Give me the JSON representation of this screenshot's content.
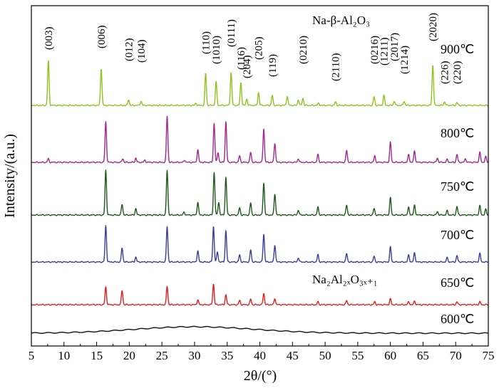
{
  "chart_data": {
    "type": "line",
    "title": "",
    "xlabel": "2θ/(°)",
    "ylabel": "Intensity/(a.u.)",
    "xlim": [
      5,
      75
    ],
    "xticks": [
      5,
      10,
      15,
      20,
      25,
      30,
      35,
      40,
      45,
      50,
      55,
      60,
      65,
      70,
      75
    ],
    "grid": false,
    "phase_labels": {
      "beta": "Na-β-Al₂O₃",
      "nax": "Na₂Al₂ₓO₃ₓ₊₁"
    },
    "hkl_annotations": [
      {
        "x": 7.6,
        "label": "(003)"
      },
      {
        "x": 15.7,
        "label": "(006)"
      },
      {
        "x": 19.9,
        "label": "(012)"
      },
      {
        "x": 21.8,
        "label": "(104)"
      },
      {
        "x": 31.7,
        "label": "(110)"
      },
      {
        "x": 33.3,
        "label": "(1010)"
      },
      {
        "x": 35.6,
        "label": "(0111)"
      },
      {
        "x": 37.1,
        "label": "(116)"
      },
      {
        "x": 38.0,
        "label": "(204)"
      },
      {
        "x": 39.8,
        "label": "(205)"
      },
      {
        "x": 41.9,
        "label": "(119)"
      },
      {
        "x": 46.6,
        "label": "(0210)"
      },
      {
        "x": 51.6,
        "label": "(2110)"
      },
      {
        "x": 57.5,
        "label": "(0216)"
      },
      {
        "x": 59.0,
        "label": "(1211)"
      },
      {
        "x": 60.6,
        "label": "(2017)"
      },
      {
        "x": 62.1,
        "label": "(1214)"
      },
      {
        "x": 66.5,
        "label": "(2020)"
      },
      {
        "x": 68.3,
        "label": "(226)"
      },
      {
        "x": 70.2,
        "label": "(220)"
      }
    ],
    "series": [
      {
        "name": "900℃",
        "color": "#8fc31f",
        "peaks": [
          [
            7.6,
            62
          ],
          [
            15.7,
            52
          ],
          [
            19.9,
            8
          ],
          [
            21.8,
            6
          ],
          [
            30.2,
            3
          ],
          [
            31.7,
            45
          ],
          [
            33.3,
            33
          ],
          [
            35.6,
            46
          ],
          [
            37.1,
            32
          ],
          [
            38.0,
            9
          ],
          [
            39.8,
            18
          ],
          [
            41.9,
            14
          ],
          [
            44.2,
            13
          ],
          [
            45.9,
            8
          ],
          [
            46.6,
            10
          ],
          [
            49.0,
            3
          ],
          [
            51.6,
            5
          ],
          [
            57.5,
            12
          ],
          [
            59.0,
            14
          ],
          [
            60.6,
            6
          ],
          [
            62.1,
            6
          ],
          [
            66.5,
            57
          ],
          [
            68.3,
            5
          ],
          [
            70.2,
            4
          ]
        ]
      },
      {
        "name": "800℃",
        "color": "#a0298f",
        "peaks": [
          [
            7.6,
            5
          ],
          [
            16.4,
            57
          ],
          [
            19.0,
            5
          ],
          [
            21.0,
            6
          ],
          [
            22.4,
            3
          ],
          [
            25.8,
            65
          ],
          [
            28.5,
            3
          ],
          [
            30.5,
            18
          ],
          [
            33.0,
            55
          ],
          [
            33.6,
            14
          ],
          [
            34.8,
            57
          ],
          [
            36.9,
            9
          ],
          [
            38.6,
            14
          ],
          [
            40.6,
            47
          ],
          [
            42.3,
            27
          ],
          [
            45.9,
            5
          ],
          [
            48.9,
            11
          ],
          [
            53.3,
            17
          ],
          [
            57.6,
            9
          ],
          [
            60.0,
            28
          ],
          [
            62.8,
            11
          ],
          [
            63.7,
            16
          ],
          [
            67.2,
            6
          ],
          [
            68.7,
            4
          ],
          [
            70.2,
            11
          ],
          [
            71.5,
            5
          ],
          [
            73.7,
            14
          ],
          [
            74.6,
            8
          ]
        ]
      },
      {
        "name": "750℃",
        "color": "#1f5a1a",
        "peaks": [
          [
            16.4,
            63
          ],
          [
            18.9,
            15
          ],
          [
            21.0,
            9
          ],
          [
            25.8,
            63
          ],
          [
            28.4,
            4
          ],
          [
            30.5,
            18
          ],
          [
            33.0,
            60
          ],
          [
            33.7,
            18
          ],
          [
            34.8,
            53
          ],
          [
            36.9,
            10
          ],
          [
            38.6,
            17
          ],
          [
            40.6,
            45
          ],
          [
            42.3,
            30
          ],
          [
            45.9,
            7
          ],
          [
            48.9,
            11
          ],
          [
            53.3,
            14
          ],
          [
            57.5,
            9
          ],
          [
            60.0,
            24
          ],
          [
            62.8,
            11
          ],
          [
            63.7,
            14
          ],
          [
            67.2,
            5
          ],
          [
            68.7,
            6
          ],
          [
            70.2,
            12
          ],
          [
            73.7,
            13
          ],
          [
            74.6,
            8
          ]
        ]
      },
      {
        "name": "700℃",
        "color": "#3b3d9a",
        "peaks": [
          [
            16.4,
            51
          ],
          [
            18.9,
            20
          ],
          [
            21.0,
            7
          ],
          [
            25.8,
            50
          ],
          [
            30.5,
            16
          ],
          [
            32.9,
            50
          ],
          [
            33.5,
            14
          ],
          [
            34.8,
            44
          ],
          [
            36.9,
            10
          ],
          [
            38.6,
            17
          ],
          [
            40.6,
            39
          ],
          [
            42.3,
            24
          ],
          [
            45.9,
            6
          ],
          [
            48.9,
            10
          ],
          [
            53.3,
            12
          ],
          [
            57.5,
            8
          ],
          [
            60.0,
            21
          ],
          [
            62.8,
            10
          ],
          [
            63.7,
            13
          ],
          [
            68.7,
            6
          ],
          [
            70.2,
            9
          ],
          [
            73.7,
            12
          ]
        ]
      },
      {
        "name": "650℃",
        "color": "#e0201d",
        "peaks": [
          [
            16.4,
            25
          ],
          [
            18.9,
            20
          ],
          [
            25.8,
            26
          ],
          [
            30.5,
            7
          ],
          [
            32.9,
            29
          ],
          [
            34.8,
            14
          ],
          [
            36.9,
            6
          ],
          [
            38.6,
            8
          ],
          [
            40.6,
            16
          ],
          [
            42.3,
            9
          ],
          [
            48.9,
            4
          ],
          [
            53.3,
            6
          ],
          [
            57.6,
            4
          ],
          [
            60.0,
            8
          ],
          [
            62.8,
            4
          ],
          [
            63.7,
            5
          ],
          [
            70.2,
            4
          ],
          [
            73.7,
            4
          ]
        ]
      },
      {
        "name": "600℃",
        "color": "#111111",
        "peaks": []
      }
    ]
  }
}
